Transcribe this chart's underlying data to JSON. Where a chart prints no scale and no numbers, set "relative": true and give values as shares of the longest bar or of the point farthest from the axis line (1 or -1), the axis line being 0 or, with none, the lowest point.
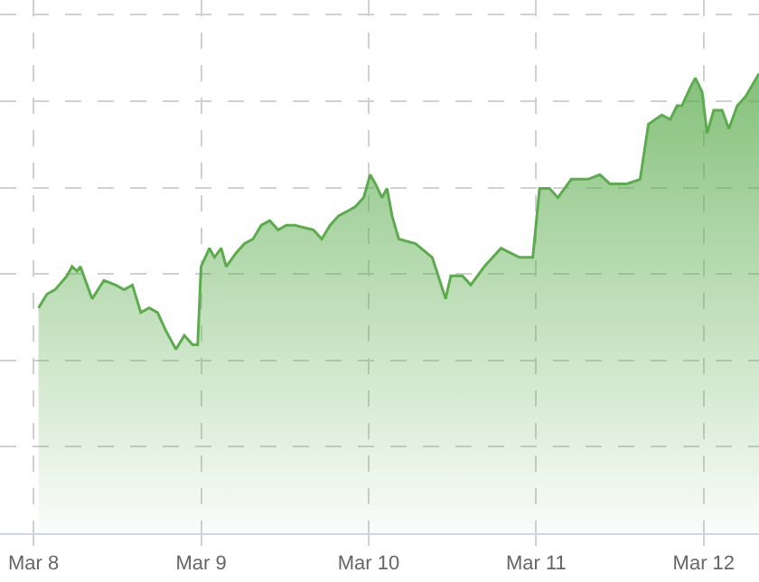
{
  "chart_data": {
    "type": "area",
    "relative": true,
    "color": "#5cac4e",
    "grid": true,
    "legend": false,
    "marker": "none",
    "line_style": "solid",
    "xlim": [
      "--03-07T19:12",
      "--03-12T07:55"
    ],
    "xticks": [
      {
        "value": "--03-08",
        "label": "Mar 8"
      },
      {
        "value": "--03-09",
        "label": "Mar 9"
      },
      {
        "value": "--03-10",
        "label": "Mar 10"
      },
      {
        "value": "--03-11",
        "label": "Mar 11"
      },
      {
        "value": "--03-12",
        "label": "Mar 12"
      }
    ],
    "x": [
      "--03-08T00:43",
      "--03-08T01:55",
      "--03-08T03:07",
      "--03-08T04:48",
      "--03-08T05:31",
      "--03-08T06:14",
      "--03-08T06:43",
      "--03-08T07:55",
      "--03-08T08:24",
      "--03-08T10:05",
      "--03-08T11:46",
      "--03-08T12:58",
      "--03-08T14:10",
      "--03-08T15:22",
      "--03-08T16:34",
      "--03-08T17:46",
      "--03-08T18:58",
      "--03-08T20:24",
      "--03-08T21:36",
      "--03-08T22:48",
      "--03-08T23:31",
      "--03-09T00:00",
      "--03-09T01:12",
      "--03-09T01:55",
      "--03-09T02:53",
      "--03-09T03:36",
      "--03-09T05:02",
      "--03-09T06:14",
      "--03-09T07:26",
      "--03-09T08:38",
      "--03-09T09:50",
      "--03-09T11:02",
      "--03-09T12:14",
      "--03-09T13:26",
      "--03-09T16:05",
      "--03-09T17:17",
      "--03-09T18:29",
      "--03-09T19:41",
      "--03-09T20:53",
      "--03-09T22:05",
      "--03-09T23:17",
      "--03-10T00:14",
      "--03-10T00:58",
      "--03-10T01:55",
      "--03-10T02:38",
      "--03-10T03:22",
      "--03-10T04:19",
      "--03-10T06:43",
      "--03-10T09:07",
      "--03-10T11:02",
      "--03-10T11:46",
      "--03-10T13:26",
      "--03-10T14:38",
      "--03-10T16:34",
      "--03-10T18:58",
      "--03-10T21:36",
      "--03-10T23:31",
      "--03-11T00:29",
      "--03-11T01:55",
      "--03-11T03:07",
      "--03-11T05:02",
      "--03-11T07:26",
      "--03-11T09:07",
      "--03-11T10:34",
      "--03-11T12:58",
      "--03-11T14:53",
      "--03-11T16:05",
      "--03-11T18:00",
      "--03-11T19:12",
      "--03-11T20:10",
      "--03-11T20:53",
      "--03-11T22:05",
      "--03-11T22:48",
      "--03-11T23:46",
      "--03-12T00:29",
      "--03-12T01:26",
      "--03-12T02:38",
      "--03-12T03:36",
      "--03-12T04:48",
      "--03-12T06:00",
      "--03-12T07:55"
    ],
    "values": [
      0.49,
      0.52,
      0.53,
      0.56,
      0.58,
      0.57,
      0.58,
      0.53,
      0.51,
      0.55,
      0.54,
      0.53,
      0.54,
      0.48,
      0.49,
      0.48,
      0.44,
      0.4,
      0.43,
      0.41,
      0.41,
      0.58,
      0.62,
      0.6,
      0.62,
      0.58,
      0.61,
      0.63,
      0.64,
      0.67,
      0.68,
      0.66,
      0.67,
      0.67,
      0.66,
      0.64,
      0.67,
      0.69,
      0.7,
      0.71,
      0.73,
      0.78,
      0.76,
      0.73,
      0.75,
      0.69,
      0.64,
      0.63,
      0.6,
      0.51,
      0.56,
      0.56,
      0.54,
      0.58,
      0.62,
      0.6,
      0.6,
      0.75,
      0.75,
      0.73,
      0.77,
      0.77,
      0.78,
      0.76,
      0.76,
      0.77,
      0.89,
      0.91,
      0.9,
      0.93,
      0.93,
      0.97,
      0.99,
      0.96,
      0.87,
      0.92,
      0.92,
      0.88,
      0.93,
      0.95,
      1.0
    ]
  }
}
